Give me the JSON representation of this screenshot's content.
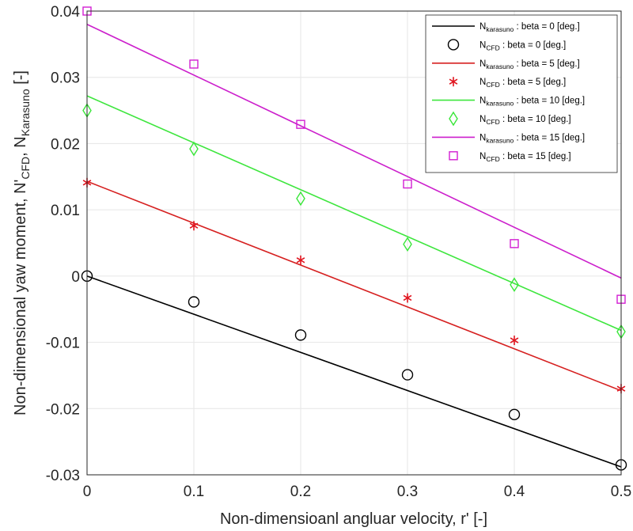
{
  "chart_data": {
    "type": "line",
    "title": "",
    "xlabel": "Non-dimensioanl angluar velocity, r' [-]",
    "ylabel_parts": [
      "Non-dimensional yaw moment, N'",
      "CFD",
      ", N",
      "Karasuno",
      " [-]"
    ],
    "xlim": [
      0,
      0.5
    ],
    "ylim": [
      -0.03,
      0.04
    ],
    "x_ticks": [
      0,
      0.1,
      0.2,
      0.3,
      0.4,
      0.5
    ],
    "x_tick_labels": [
      "0",
      "0.1",
      "0.2",
      "0.3",
      "0.4",
      "0.5"
    ],
    "y_ticks": [
      -0.03,
      -0.02,
      -0.01,
      0,
      0.01,
      0.02,
      0.03,
      0.04
    ],
    "y_tick_labels": [
      "-0.03",
      "-0.02",
      "-0.01",
      "0",
      "0.01",
      "0.02",
      "0.03",
      "0.04"
    ],
    "grid": true,
    "legend_position": "top-right",
    "series": [
      {
        "name": "N_karasuno : beta = 0 [deg.]",
        "legend_main": "N",
        "legend_sub": "karasuno",
        "legend_rest": " : beta = 0 [deg.]",
        "kind": "line",
        "color": "#000000",
        "x": [
          0,
          0.5
        ],
        "y": [
          0.0,
          -0.0288
        ]
      },
      {
        "name": "N_CFD : beta = 0 [deg.]",
        "legend_main": "N",
        "legend_sub": "CFD",
        "legend_rest": " : beta = 0 [deg.]",
        "kind": "marker",
        "marker": "circle",
        "color": "#000000",
        "x": [
          0,
          0.1,
          0.2,
          0.3,
          0.4,
          0.5
        ],
        "y": [
          0.0,
          -0.0039,
          -0.0089,
          -0.0149,
          -0.0209,
          -0.0285
        ]
      },
      {
        "name": "N_karasuno : beta = 5 [deg.]",
        "legend_main": "N",
        "legend_sub": "karasuno",
        "legend_rest": " : beta = 5 [deg.]",
        "kind": "line",
        "color": "#d62020",
        "x": [
          0,
          0.5
        ],
        "y": [
          0.0143,
          -0.0173
        ]
      },
      {
        "name": "N_CFD : beta = 5 [deg.]",
        "legend_main": "N",
        "legend_sub": "CFD",
        "legend_rest": " : beta = 5 [deg.]",
        "kind": "marker",
        "marker": "asterisk",
        "color": "#e0141e",
        "x": [
          0,
          0.1,
          0.2,
          0.3,
          0.4,
          0.5
        ],
        "y": [
          0.0141,
          0.0076,
          0.0024,
          -0.0033,
          -0.0097,
          -0.017
        ]
      },
      {
        "name": "N_karasuno : beta = 10 [deg.]",
        "legend_main": "N",
        "legend_sub": "karasuno",
        "legend_rest": " : beta = 10 [deg.]",
        "kind": "line",
        "color": "#3ee63e",
        "x": [
          0,
          0.5
        ],
        "y": [
          0.0272,
          -0.0082
        ]
      },
      {
        "name": "N_CFD : beta = 10 [deg.]",
        "legend_main": "N",
        "legend_sub": "CFD",
        "legend_rest": " : beta = 10 [deg.]",
        "kind": "marker",
        "marker": "diamond",
        "color": "#39e639",
        "x": [
          0,
          0.1,
          0.2,
          0.3,
          0.4,
          0.5
        ],
        "y": [
          0.025,
          0.0192,
          0.0117,
          0.0048,
          -0.0013,
          -0.0084
        ]
      },
      {
        "name": "N_karasuno : beta = 15 [deg.]",
        "legend_main": "N",
        "legend_sub": "karasuno",
        "legend_rest": " : beta = 15 [deg.]",
        "kind": "line",
        "color": "#cc1fcc",
        "x": [
          0,
          0.5
        ],
        "y": [
          0.038,
          -0.0003
        ]
      },
      {
        "name": "N_CFD : beta = 15 [deg.]",
        "legend_main": "N",
        "legend_sub": "CFD",
        "legend_rest": " : beta = 15 [deg.]",
        "kind": "marker",
        "marker": "square",
        "color": "#d21ed2",
        "x": [
          0,
          0.1,
          0.2,
          0.3,
          0.4,
          0.5
        ],
        "y": [
          0.04,
          0.032,
          0.0229,
          0.0139,
          0.0049,
          -0.0035
        ]
      }
    ]
  }
}
